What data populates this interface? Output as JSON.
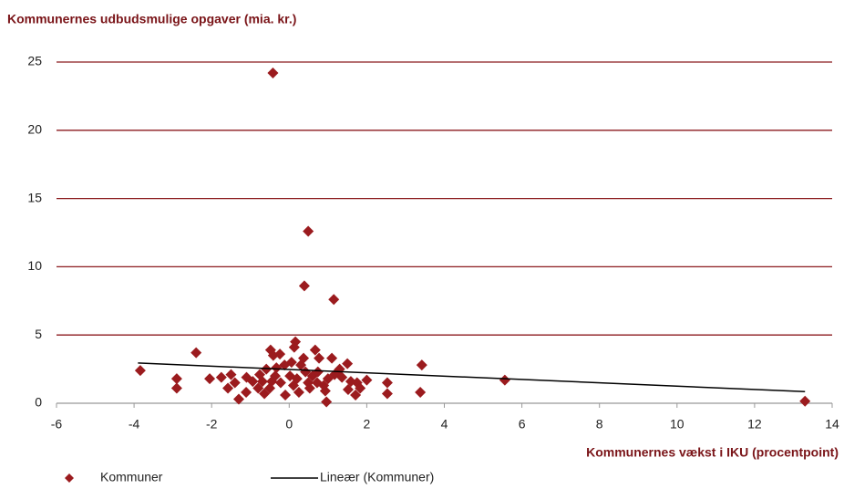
{
  "chart_data": {
    "type": "scatter",
    "title": "Kommunernes udbudsmulige opgaver (mia. kr.)",
    "x_label": "Kommunernes vækst i IKU (procentpoint)",
    "xlim": [
      -6,
      14
    ],
    "xticks": [
      -6,
      -4,
      -2,
      0,
      2,
      4,
      6,
      8,
      10,
      12,
      14
    ],
    "ylim": [
      0,
      25
    ],
    "yticks": [
      0,
      5,
      10,
      15,
      20,
      25
    ],
    "grid": true,
    "grid_color": "#8b1a1e",
    "legend": "bottom",
    "series": [
      {
        "name": "Kommuner",
        "color": "#9b1b1e",
        "x": [
          -0.42,
          0.49,
          0.39,
          1.15,
          -2.4,
          -3.84,
          -2.9,
          -2.9,
          3.42,
          3.38,
          2.53,
          2.53,
          5.56,
          13.3,
          0.16,
          0.13,
          -0.48,
          -0.41,
          -0.24,
          0.67,
          0.77,
          1.1,
          1.5,
          1.3,
          2.0,
          1.75,
          1.71,
          1.52,
          0.96,
          0.93,
          -1.3,
          -1.75,
          -1.5,
          -1.4,
          -1.1,
          -1.11,
          -0.8,
          -0.64,
          -0.59,
          -0.36,
          -0.12,
          0.06,
          -0.1,
          0.25,
          0.49,
          0.6,
          0.74,
          0.72,
          1.0,
          1.17,
          1.36,
          0.42,
          0.3,
          0.02,
          -0.22,
          -0.45,
          -0.69,
          -0.94,
          -1.58,
          -2.05,
          0.11,
          0.2,
          0.53,
          1.59,
          1.83,
          -0.33,
          -0.76,
          0.37,
          0.89,
          -0.5
        ],
        "values": [
          24.2,
          12.6,
          8.6,
          7.6,
          3.7,
          2.4,
          1.8,
          1.1,
          2.8,
          0.8,
          1.5,
          0.7,
          1.7,
          0.15,
          4.5,
          4.1,
          3.9,
          3.5,
          3.6,
          3.9,
          3.3,
          3.3,
          2.9,
          2.5,
          1.7,
          1.5,
          0.6,
          1.0,
          0.1,
          0.9,
          0.3,
          1.9,
          2.1,
          1.5,
          1.9,
          0.8,
          1.1,
          0.7,
          2.5,
          2.0,
          2.8,
          3.0,
          0.6,
          0.8,
          1.5,
          2.0,
          2.3,
          1.5,
          1.8,
          2.1,
          1.9,
          2.3,
          2.8,
          2.0,
          1.5,
          1.6,
          1.6,
          1.6,
          1.1,
          1.8,
          1.3,
          1.8,
          1.1,
          1.6,
          1.1,
          2.6,
          2.1,
          3.3,
          1.3,
          1.1
        ]
      },
      {
        "name": "Lineær (Kommuner)",
        "color": "#000000",
        "line": true,
        "x": [
          -3.9,
          13.3
        ],
        "values": [
          2.95,
          0.85
        ]
      }
    ]
  }
}
